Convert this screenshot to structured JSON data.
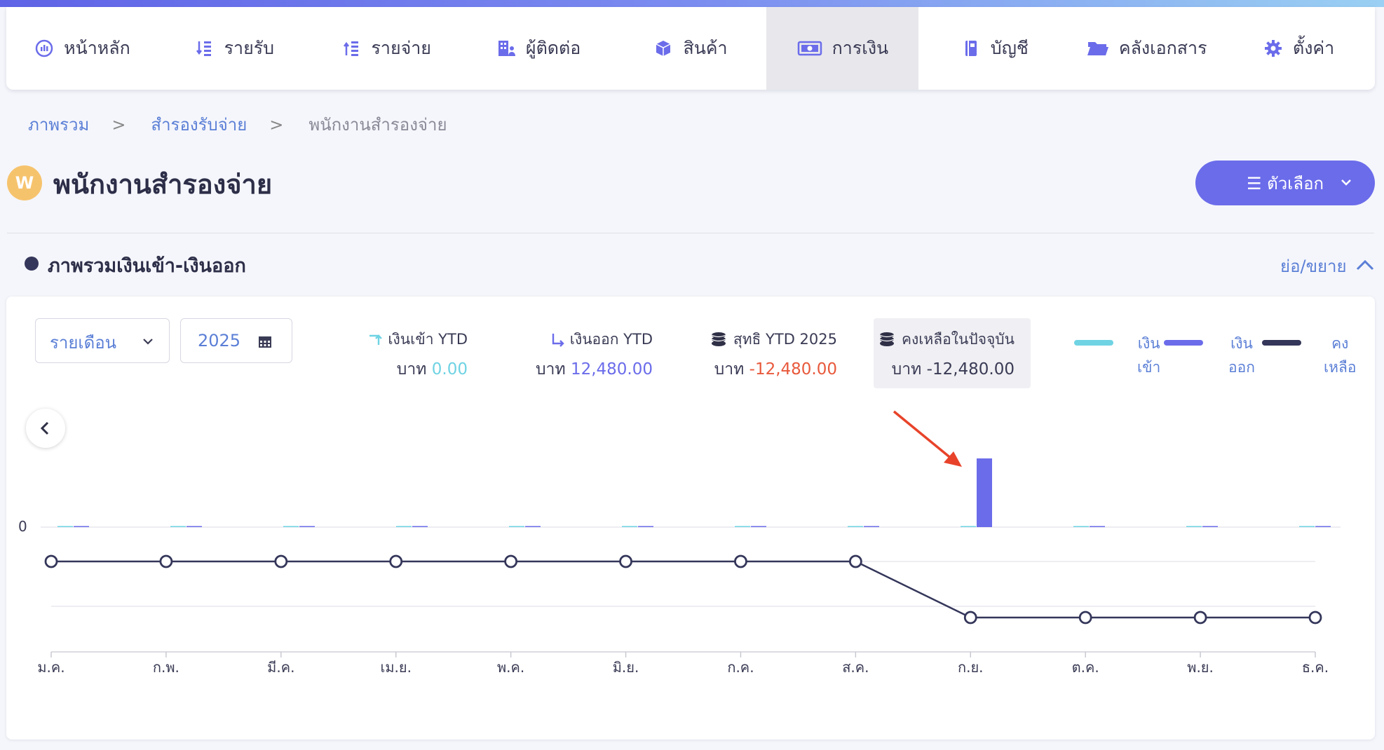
{
  "nav": {
    "items": [
      {
        "label": "หน้าหลัก",
        "icon": "dashboard-icon"
      },
      {
        "label": "รายรับ",
        "icon": "income-icon"
      },
      {
        "label": "รายจ่าย",
        "icon": "expense-icon"
      },
      {
        "label": "ผู้ติดต่อ",
        "icon": "contacts-icon"
      },
      {
        "label": "สินค้า",
        "icon": "box-icon"
      },
      {
        "label": "การเงิน",
        "icon": "money-icon",
        "active": true
      },
      {
        "label": "บัญชี",
        "icon": "book-icon"
      },
      {
        "label": "คลังเอกสาร",
        "icon": "folder-icon"
      },
      {
        "label": "ตั้งค่า",
        "icon": "gear-icon"
      }
    ]
  },
  "breadcrumb": {
    "items": [
      "ภาพรวม",
      "สำรองรับจ่าย",
      "พนักงานสำรองจ่าย"
    ],
    "separator": ">"
  },
  "page": {
    "avatar_letter": "W",
    "title": "พนักงานสำรองจ่าย",
    "options_label": "☰ ตัวเลือก"
  },
  "section": {
    "title": "ภาพรวมเงินเข้า-เงินออก",
    "collapse_label": "ย่อ/ขยาย"
  },
  "filters": {
    "period": "รายเดือน",
    "year": "2025"
  },
  "stats": {
    "in_label": "เงินเข้า YTD",
    "in_currency": "บาท",
    "in_value": "0.00",
    "out_label": "เงินออก YTD",
    "out_currency": "บาท",
    "out_value": "12,480.00",
    "net_label": "สุทธิ YTD 2025",
    "net_currency": "บาท",
    "net_value": "-12,480.00",
    "balance_label": "คงเหลือในปัจจุบัน",
    "balance_currency": "บาท",
    "balance_value": "-12,480.00"
  },
  "legend": {
    "in_line1": "เงิน",
    "in_line2": "เข้า",
    "out_line1": "เงิน",
    "out_line2": "ออก",
    "bal_line1": "คง",
    "bal_line2": "เหลือ"
  },
  "colors": {
    "accent": "#6b6cea",
    "in": "#6fd3e3",
    "out": "#6b6cea",
    "balance": "#34365a",
    "negative": "#e8593c",
    "annotation": "#e8432a"
  },
  "chart_data": {
    "type": "bar+line",
    "categories": [
      "ม.ค.",
      "ก.พ.",
      "มี.ค.",
      "เม.ย.",
      "พ.ค.",
      "มิ.ย.",
      "ก.ค.",
      "ส.ค.",
      "ก.ย.",
      "ต.ค.",
      "พ.ย.",
      "ธ.ค."
    ],
    "series": [
      {
        "name": "เงินเข้า",
        "type": "bar",
        "values": [
          0,
          0,
          0,
          0,
          0,
          0,
          0,
          0,
          0,
          0,
          0,
          0
        ]
      },
      {
        "name": "เงินออก",
        "type": "bar",
        "values": [
          0,
          0,
          0,
          0,
          0,
          0,
          0,
          0,
          12480,
          0,
          0,
          0
        ]
      },
      {
        "name": "คงเหลือ",
        "type": "line",
        "values": [
          0,
          0,
          0,
          0,
          0,
          0,
          0,
          0,
          -12480,
          -12480,
          -12480,
          -12480
        ]
      }
    ],
    "bar_axis_tick": "0",
    "annotation": "red arrow pointing at ก.ย. bar"
  }
}
